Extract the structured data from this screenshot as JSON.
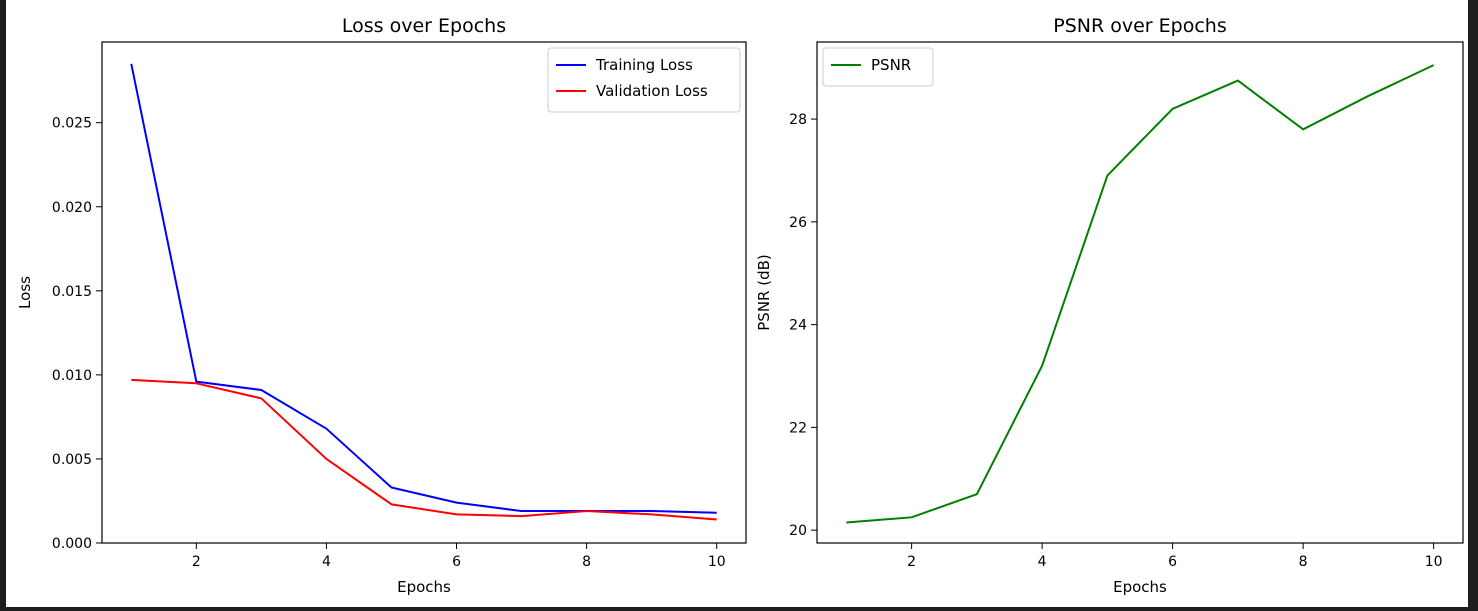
{
  "colors": {
    "training_loss": "#0000ff",
    "validation_loss": "#ff0000",
    "psnr": "#008000"
  },
  "chart_data": [
    {
      "type": "line",
      "title": "Loss over Epochs",
      "xlabel": "Epochs",
      "ylabel": "Loss",
      "xlim": [
        0.55,
        10.45
      ],
      "ylim": [
        0.0,
        0.0298
      ],
      "xticks": [
        2,
        4,
        6,
        8,
        10
      ],
      "yticks": [
        0.0,
        0.005,
        0.01,
        0.015,
        0.02,
        0.025
      ],
      "ytick_labels": [
        "0.000",
        "0.005",
        "0.010",
        "0.015",
        "0.020",
        "0.025"
      ],
      "legend": "top-right",
      "grid": false,
      "x": [
        1,
        2,
        3,
        4,
        5,
        6,
        7,
        8,
        9,
        10
      ],
      "series": [
        {
          "name": "Training Loss",
          "color": "#0000ff",
          "values": [
            0.0285,
            0.0096,
            0.0091,
            0.0068,
            0.0033,
            0.0024,
            0.0019,
            0.0019,
            0.0019,
            0.0018
          ]
        },
        {
          "name": "Validation Loss",
          "color": "#ff0000",
          "values": [
            0.0097,
            0.0095,
            0.0086,
            0.005,
            0.0023,
            0.0017,
            0.0016,
            0.0019,
            0.0017,
            0.0014
          ]
        }
      ]
    },
    {
      "type": "line",
      "title": "PSNR over Epochs",
      "xlabel": "Epochs",
      "ylabel": "PSNR (dB)",
      "xlim": [
        0.55,
        10.45
      ],
      "ylim": [
        19.75,
        29.5
      ],
      "xticks": [
        2,
        4,
        6,
        8,
        10
      ],
      "yticks": [
        20,
        22,
        24,
        26,
        28
      ],
      "ytick_labels": [
        "20",
        "22",
        "24",
        "26",
        "28"
      ],
      "legend": "top-left",
      "grid": false,
      "x": [
        1,
        2,
        3,
        4,
        5,
        6,
        7,
        8,
        9,
        10
      ],
      "series": [
        {
          "name": "PSNR",
          "color": "#008000",
          "values": [
            20.15,
            20.25,
            20.7,
            23.2,
            26.9,
            28.2,
            28.75,
            27.8,
            28.45,
            29.05
          ]
        }
      ]
    }
  ]
}
